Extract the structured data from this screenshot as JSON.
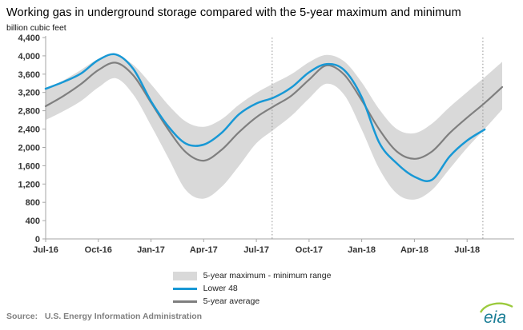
{
  "title": "Working gas in underground storage compared with the 5-year maximum and minimum",
  "y_axis_caption": "billion cubic feet",
  "source": "Source:   U.S. Energy Information Administration",
  "logo_text": "eia",
  "colors": {
    "band": "#d9d9d9",
    "lower48": "#1898d5",
    "average": "#7f7f7f",
    "axis": "#a6a6a6",
    "dashed": "#9a9a9a",
    "tick_label": "#333333"
  },
  "legend": [
    {
      "swatch": "band",
      "label": "5-year maximum - minimum range"
    },
    {
      "swatch": "lower48",
      "label": "Lower 48"
    },
    {
      "swatch": "average",
      "label": "5-year average"
    }
  ],
  "chart_data": {
    "type": "line",
    "title": "Working gas in underground storage compared with the 5-year maximum and minimum",
    "xlabel": "",
    "ylabel": "billion cubic feet",
    "ylim": [
      0,
      4400
    ],
    "ytick_step": 400,
    "y_tick_labels": [
      "0",
      "400",
      "800",
      "1,200",
      "1,600",
      "2,000",
      "2,400",
      "2,800",
      "3,200",
      "3,600",
      "4,000",
      "4,400"
    ],
    "grid": false,
    "legend_position": "bottom",
    "x_domain": [
      0,
      26.5
    ],
    "x_months": [
      "Jul-16",
      "Aug-16",
      "Sep-16",
      "Oct-16",
      "Nov-16",
      "Dec-16",
      "Jan-17",
      "Feb-17",
      "Mar-17",
      "Apr-17",
      "May-17",
      "Jun-17",
      "Jul-17",
      "Aug-17",
      "Sep-17",
      "Oct-17",
      "Nov-17",
      "Dec-17",
      "Jan-18",
      "Feb-18",
      "Mar-18",
      "Apr-18",
      "May-18",
      "Jun-18",
      "Jul-18",
      "Aug-18",
      "Sep-18"
    ],
    "x_ticks": [
      {
        "index": 0,
        "label": "Jul-16"
      },
      {
        "index": 3,
        "label": "Oct-16"
      },
      {
        "index": 6,
        "label": "Jan-17"
      },
      {
        "index": 9,
        "label": "Apr-17"
      },
      {
        "index": 12,
        "label": "Jul-17"
      },
      {
        "index": 15,
        "label": "Oct-17"
      },
      {
        "index": 18,
        "label": "Jan-18"
      },
      {
        "index": 21,
        "label": "Apr-18"
      },
      {
        "index": 24,
        "label": "Jul-18"
      }
    ],
    "dashed_vlines": [
      12.9,
      24.9
    ],
    "series": [
      {
        "name": "5-year maximum",
        "values": [
          3250,
          3460,
          3690,
          3930,
          4010,
          3800,
          3380,
          2920,
          2560,
          2450,
          2610,
          2930,
          3190,
          3400,
          3600,
          3860,
          4020,
          3880,
          3420,
          2830,
          2400,
          2310,
          2520,
          2880,
          3210,
          3530,
          3870
        ]
      },
      {
        "name": "5-year minimum",
        "values": [
          2600,
          2790,
          3010,
          3310,
          3510,
          3150,
          2480,
          1760,
          1060,
          880,
          1130,
          1590,
          2090,
          2390,
          2690,
          3070,
          3390,
          3150,
          2390,
          1530,
          990,
          860,
          1070,
          1530,
          1990,
          2400,
          2830
        ]
      },
      {
        "name": "Lower 48",
        "values": [
          3280,
          3430,
          3610,
          3910,
          4030,
          3710,
          3010,
          2450,
          2080,
          2060,
          2310,
          2720,
          2960,
          3090,
          3310,
          3640,
          3820,
          3690,
          3100,
          2100,
          1650,
          1360,
          1290,
          1800,
          2150,
          2390,
          null
        ]
      },
      {
        "name": "5-year average",
        "values": [
          2900,
          3120,
          3380,
          3690,
          3850,
          3570,
          2980,
          2380,
          1890,
          1710,
          1940,
          2330,
          2660,
          2900,
          3130,
          3480,
          3790,
          3590,
          3030,
          2390,
          1910,
          1750,
          1910,
          2310,
          2650,
          2970,
          3320
        ]
      }
    ]
  }
}
